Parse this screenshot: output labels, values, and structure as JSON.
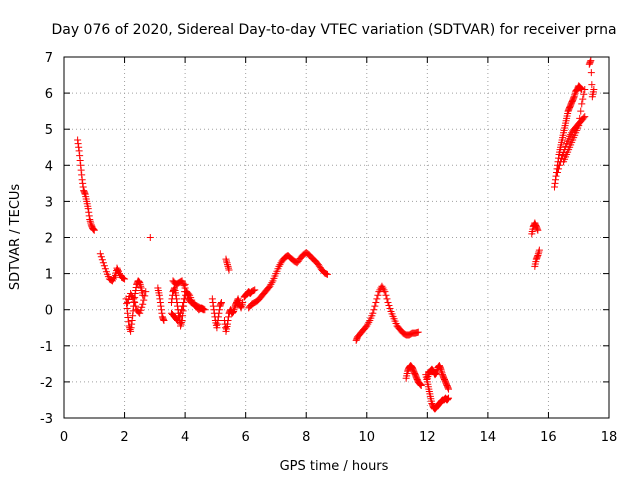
{
  "chart_data": {
    "type": "scatter",
    "title": "Day 076 of 2020, Sidereal Day-to-day VTEC variation (SDTVAR) for receiver prna",
    "xlabel": "GPS time / hours",
    "ylabel": "SDTVAR / TECUs",
    "xlim": [
      0,
      18
    ],
    "ylim": [
      -3,
      7
    ],
    "xticks": [
      0,
      2,
      4,
      6,
      8,
      10,
      12,
      14,
      16,
      18
    ],
    "yticks": [
      -3,
      -2,
      -1,
      0,
      1,
      2,
      3,
      4,
      5,
      6,
      7
    ],
    "grid": true,
    "marker": "+",
    "color": "#ff0000",
    "series": [
      {
        "name": "trace_1",
        "x": [
          0.45,
          0.5,
          0.55,
          0.6,
          0.65,
          0.7,
          0.75,
          0.8,
          0.85,
          0.9,
          0.95,
          1.0
        ],
        "y": [
          4.7,
          4.4,
          4.0,
          3.6,
          3.3,
          3.2,
          3.0,
          2.8,
          2.5,
          2.35,
          2.25,
          2.2
        ]
      },
      {
        "name": "trace_2",
        "x": [
          1.2,
          1.3,
          1.4,
          1.5,
          1.6,
          1.7,
          1.75,
          1.8,
          1.9,
          2.0
        ],
        "y": [
          1.55,
          1.3,
          1.05,
          0.85,
          0.8,
          0.95,
          1.15,
          1.05,
          0.9,
          0.85
        ]
      },
      {
        "name": "trace_3",
        "x": [
          2.05,
          2.1,
          2.15,
          2.2,
          2.25,
          2.3,
          2.35,
          2.4,
          2.45,
          2.5,
          2.55,
          2.6
        ],
        "y": [
          0.3,
          -0.1,
          -0.45,
          -0.6,
          -0.3,
          0.1,
          0.45,
          0.7,
          0.8,
          0.75,
          0.6,
          0.4
        ]
      },
      {
        "name": "trace_4",
        "x": [
          2.1,
          2.2,
          2.3,
          2.4,
          2.5,
          2.6,
          2.7
        ],
        "y": [
          0.2,
          0.45,
          0.3,
          0.0,
          -0.1,
          0.15,
          0.5
        ]
      },
      {
        "name": "trace_5",
        "x": [
          2.85
        ],
        "y": [
          2.0
        ]
      },
      {
        "name": "trace_6",
        "x": [
          3.1,
          3.15,
          3.2,
          3.25,
          3.3
        ],
        "y": [
          0.6,
          0.4,
          0.1,
          -0.2,
          -0.3
        ]
      },
      {
        "name": "trace_7",
        "x": [
          3.55,
          3.6,
          3.65,
          3.7,
          3.75,
          3.8,
          3.85,
          3.9,
          3.95,
          4.0
        ],
        "y": [
          0.2,
          0.5,
          0.6,
          0.4,
          0.1,
          -0.2,
          -0.45,
          -0.3,
          0.1,
          0.7
        ]
      },
      {
        "name": "trace_8",
        "x": [
          3.55,
          3.65,
          3.75,
          3.85,
          3.95,
          4.05,
          4.15,
          4.25,
          4.35,
          4.45,
          4.55,
          4.65
        ],
        "y": [
          -0.1,
          -0.2,
          -0.3,
          -0.1,
          0.2,
          0.5,
          0.4,
          0.2,
          0.1,
          0.0,
          0.05,
          0.0
        ]
      },
      {
        "name": "trace_9",
        "x": [
          3.6,
          3.7,
          3.8,
          3.9,
          4.0,
          4.1,
          4.2,
          4.3,
          4.4,
          4.5,
          4.6
        ],
        "y": [
          0.8,
          0.7,
          0.75,
          0.8,
          0.6,
          0.3,
          0.2,
          0.15,
          0.1,
          0.05,
          0.0
        ]
      },
      {
        "name": "trace_10",
        "x": [
          4.9,
          4.95,
          5.0,
          5.05,
          5.1,
          5.15,
          5.2
        ],
        "y": [
          0.3,
          0.0,
          -0.3,
          -0.5,
          -0.2,
          0.1,
          0.2
        ]
      },
      {
        "name": "trace_11",
        "x": [
          5.35,
          5.4,
          5.45
        ],
        "y": [
          1.4,
          1.25,
          1.1
        ]
      },
      {
        "name": "trace_12",
        "x": [
          5.3,
          5.35,
          5.4,
          5.45,
          5.5,
          5.55,
          5.6,
          5.65,
          5.7,
          5.75,
          5.8,
          5.85,
          5.9
        ],
        "y": [
          -0.3,
          -0.6,
          -0.4,
          -0.1,
          0.0,
          -0.1,
          -0.05,
          0.1,
          0.2,
          0.3,
          0.15,
          0.05,
          0.2
        ]
      },
      {
        "name": "trace_13",
        "x": [
          6.1,
          6.2,
          6.3,
          6.4,
          6.5,
          6.6,
          6.7,
          6.8,
          6.9,
          7.0,
          7.1,
          7.2,
          7.3,
          7.4,
          7.5,
          7.6,
          7.7,
          7.8,
          7.9,
          8.0,
          8.1,
          8.2,
          8.3,
          8.4,
          8.5,
          8.6,
          8.7
        ],
        "y": [
          0.05,
          0.15,
          0.2,
          0.25,
          0.35,
          0.45,
          0.55,
          0.65,
          0.8,
          1.0,
          1.2,
          1.35,
          1.45,
          1.5,
          1.42,
          1.35,
          1.3,
          1.42,
          1.52,
          1.58,
          1.52,
          1.42,
          1.35,
          1.25,
          1.12,
          1.02,
          0.98
        ]
      },
      {
        "name": "trace_14",
        "x": [
          5.95,
          6.0,
          6.05,
          6.1,
          6.15,
          6.2,
          6.3
        ],
        "y": [
          0.35,
          0.4,
          0.45,
          0.5,
          0.45,
          0.5,
          0.55
        ]
      },
      {
        "name": "trace_15",
        "x": [
          9.65,
          9.7,
          9.8,
          9.9,
          10.0,
          10.1,
          10.2,
          10.3,
          10.4,
          10.5,
          10.6,
          10.7,
          10.8,
          10.9,
          11.0,
          11.1,
          11.2,
          11.3,
          11.4,
          11.5,
          11.6,
          11.7
        ],
        "y": [
          -0.85,
          -0.75,
          -0.65,
          -0.55,
          -0.45,
          -0.3,
          -0.1,
          0.2,
          0.5,
          0.65,
          0.5,
          0.2,
          -0.05,
          -0.25,
          -0.45,
          -0.55,
          -0.65,
          -0.7,
          -0.7,
          -0.65,
          -0.65,
          -0.62
        ]
      },
      {
        "name": "trace_16",
        "x": [
          11.3,
          11.35,
          11.4,
          11.45,
          11.5,
          11.55,
          11.6,
          11.65,
          11.7,
          11.75,
          11.8
        ],
        "y": [
          -1.9,
          -1.7,
          -1.6,
          -1.55,
          -1.6,
          -1.7,
          -1.8,
          -1.9,
          -2.0,
          -2.05,
          -2.1
        ]
      },
      {
        "name": "trace_17",
        "x": [
          11.95,
          12.0,
          12.05,
          12.1,
          12.15,
          12.2,
          12.25,
          12.3,
          12.35,
          12.4,
          12.45,
          12.5,
          12.55,
          12.6,
          12.65,
          12.7
        ],
        "y": [
          -1.8,
          -2.0,
          -2.2,
          -2.4,
          -2.6,
          -2.7,
          -2.75,
          -2.7,
          -2.65,
          -2.6,
          -2.55,
          -2.5,
          -2.5,
          -2.45,
          -2.5,
          -2.45
        ]
      },
      {
        "name": "trace_18",
        "x": [
          12.0,
          12.05,
          12.1,
          12.15,
          12.2,
          12.25,
          12.3,
          12.35,
          12.4,
          12.45,
          12.5,
          12.55,
          12.6,
          12.65,
          12.7
        ],
        "y": [
          -1.9,
          -1.75,
          -1.7,
          -1.65,
          -1.7,
          -1.8,
          -1.75,
          -1.6,
          -1.55,
          -1.65,
          -1.8,
          -1.9,
          -2.0,
          -2.1,
          -2.2
        ]
      },
      {
        "name": "trace_19",
        "x": [
          15.45,
          15.5,
          15.55,
          15.6,
          15.65
        ],
        "y": [
          2.1,
          2.3,
          2.4,
          2.3,
          2.2
        ]
      },
      {
        "name": "trace_20",
        "x": [
          15.55,
          15.6,
          15.65,
          15.7
        ],
        "y": [
          1.2,
          1.4,
          1.5,
          1.65
        ]
      },
      {
        "name": "trace_21",
        "x": [
          16.2,
          16.25,
          16.3,
          16.35,
          16.4,
          16.45,
          16.5,
          16.55,
          16.6,
          16.65,
          16.7,
          16.75,
          16.8,
          16.85,
          16.9,
          16.95,
          17.0,
          17.05,
          17.1
        ],
        "y": [
          3.4,
          3.7,
          4.0,
          4.3,
          4.5,
          4.7,
          4.9,
          5.1,
          5.3,
          5.5,
          5.6,
          5.7,
          5.8,
          5.9,
          6.05,
          6.1,
          6.2,
          6.15,
          6.1
        ]
      },
      {
        "name": "trace_22",
        "x": [
          16.3,
          16.4,
          16.5,
          16.6,
          16.7,
          16.8,
          16.9,
          17.0,
          17.1,
          17.2
        ],
        "y": [
          3.8,
          4.1,
          4.35,
          4.6,
          4.8,
          4.95,
          5.05,
          5.15,
          5.25,
          5.35
        ]
      },
      {
        "name": "trace_23",
        "x": [
          16.5,
          16.6,
          16.7,
          16.8,
          16.9,
          17.0,
          17.1,
          17.2
        ],
        "y": [
          4.1,
          4.3,
          4.5,
          4.7,
          4.9,
          5.1,
          5.7,
          6.1
        ]
      },
      {
        "name": "trace_24",
        "x": [
          17.35,
          17.4,
          17.45,
          17.5
        ],
        "y": [
          6.8,
          6.9,
          5.9,
          6.1
        ]
      }
    ]
  }
}
